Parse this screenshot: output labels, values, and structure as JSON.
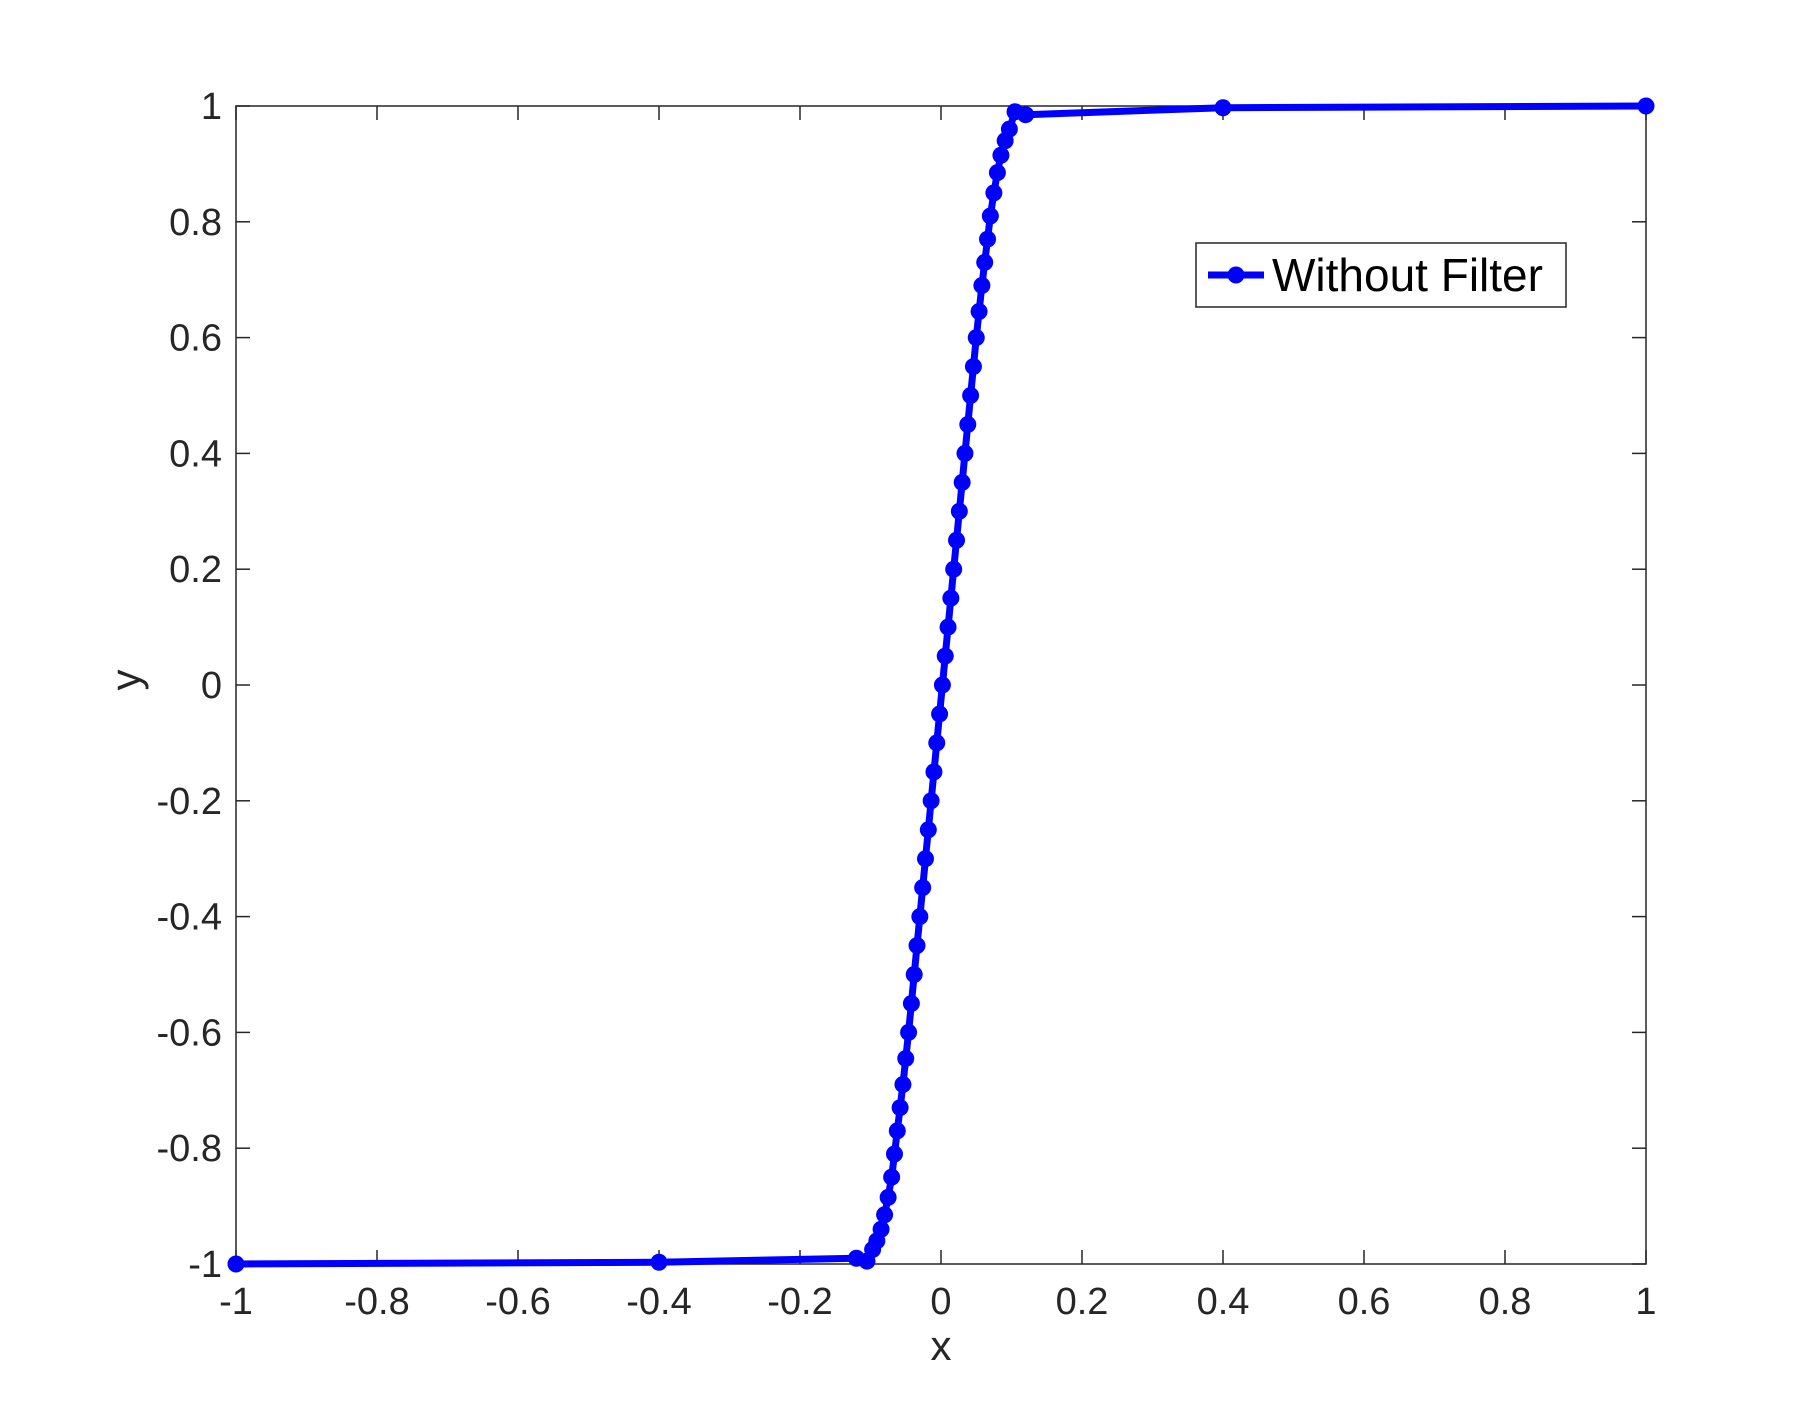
{
  "chart_data": {
    "type": "line",
    "title": "",
    "xlabel": "x",
    "ylabel": "y",
    "xlim": [
      -1,
      1
    ],
    "ylim": [
      -1,
      1
    ],
    "xticks": [
      "-1",
      "-0.8",
      "-0.6",
      "-0.4",
      "-0.2",
      "0",
      "0.2",
      "0.4",
      "0.6",
      "0.8",
      "1"
    ],
    "yticks": [
      "-1",
      "-0.8",
      "-0.6",
      "-0.4",
      "-0.2",
      "0",
      "0.2",
      "0.4",
      "0.6",
      "0.8",
      "1"
    ],
    "grid": false,
    "box": true,
    "legend_location": "top-right",
    "series": [
      {
        "name": "Without Filter",
        "color": "#0000ff",
        "marker": "circle",
        "x": [
          -1,
          -0.4,
          -0.12,
          -0.105,
          -0.097,
          -0.091,
          -0.085,
          -0.08,
          -0.075,
          -0.07,
          -0.066,
          -0.062,
          -0.058,
          -0.054,
          -0.05,
          -0.046,
          -0.042,
          -0.038,
          -0.034,
          -0.03,
          -0.026,
          -0.022,
          -0.018,
          -0.014,
          -0.01,
          -0.006,
          -0.002,
          0.002,
          0.006,
          0.01,
          0.014,
          0.018,
          0.022,
          0.026,
          0.03,
          0.034,
          0.038,
          0.042,
          0.046,
          0.05,
          0.054,
          0.058,
          0.062,
          0.066,
          0.07,
          0.075,
          0.08,
          0.085,
          0.091,
          0.097,
          0.105,
          0.12,
          0.4,
          1
        ],
        "y": [
          -1,
          -0.997,
          -0.99,
          -0.995,
          -0.975,
          -0.96,
          -0.94,
          -0.915,
          -0.885,
          -0.85,
          -0.81,
          -0.77,
          -0.73,
          -0.69,
          -0.645,
          -0.6,
          -0.55,
          -0.5,
          -0.45,
          -0.4,
          -0.35,
          -0.3,
          -0.25,
          -0.2,
          -0.15,
          -0.1,
          -0.05,
          0.0,
          0.05,
          0.1,
          0.15,
          0.2,
          0.25,
          0.3,
          0.35,
          0.4,
          0.45,
          0.5,
          0.55,
          0.6,
          0.645,
          0.69,
          0.73,
          0.77,
          0.81,
          0.85,
          0.885,
          0.915,
          0.94,
          0.96,
          0.99,
          0.985,
          0.997,
          1
        ]
      }
    ]
  }
}
